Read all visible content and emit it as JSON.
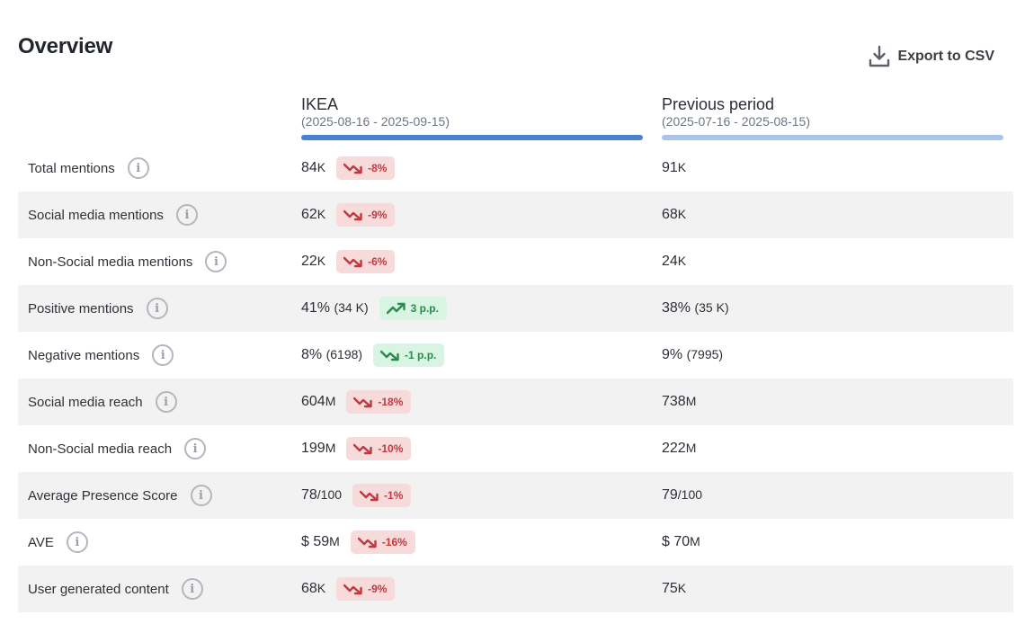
{
  "title": "Overview",
  "export_label": "Export to CSV",
  "columns": {
    "current": {
      "name": "IKEA",
      "range": "(2025-08-16 - 2025-09-15)"
    },
    "previous": {
      "name": "Previous period",
      "range": "(2025-07-16 - 2025-08-15)"
    }
  },
  "colors": {
    "current_bar": "#4a82d0",
    "previous_bar": "#a9c4e8",
    "negative_badge_bg": "#f7dada",
    "negative_badge_text": "#c0393f",
    "positive_badge_bg": "#d8f4e2",
    "positive_badge_text": "#2a8a4e"
  },
  "rows": [
    {
      "label": "Total mentions",
      "current": "84",
      "current_suffix": "K",
      "current_sub": "",
      "change": "-8%",
      "trend": "down",
      "tone": "negative",
      "previous": "91",
      "previous_suffix": "K",
      "previous_sub": ""
    },
    {
      "label": "Social media mentions",
      "current": "62",
      "current_suffix": "K",
      "current_sub": "",
      "change": "-9%",
      "trend": "down",
      "tone": "negative",
      "previous": "68",
      "previous_suffix": "K",
      "previous_sub": ""
    },
    {
      "label": "Non-Social media mentions",
      "current": "22",
      "current_suffix": "K",
      "current_sub": "",
      "change": "-6%",
      "trend": "down",
      "tone": "negative",
      "previous": "24",
      "previous_suffix": "K",
      "previous_sub": ""
    },
    {
      "label": "Positive mentions",
      "current": "41%",
      "current_suffix": "",
      "current_sub": "(34 K)",
      "change": "3 p.p.",
      "trend": "up",
      "tone": "positive",
      "previous": "38%",
      "previous_suffix": "",
      "previous_sub": "(35 K)"
    },
    {
      "label": "Negative mentions",
      "current": "8%",
      "current_suffix": "",
      "current_sub": "(6198)",
      "change": "-1 p.p.",
      "trend": "down",
      "tone": "positive",
      "previous": "9%",
      "previous_suffix": "",
      "previous_sub": "(7995)"
    },
    {
      "label": "Social media reach",
      "current": "604",
      "current_suffix": "M",
      "current_sub": "",
      "change": "-18%",
      "trend": "down",
      "tone": "negative",
      "previous": "738",
      "previous_suffix": "M",
      "previous_sub": ""
    },
    {
      "label": "Non-Social media reach",
      "current": "199",
      "current_suffix": "M",
      "current_sub": "",
      "change": "-10%",
      "trend": "down",
      "tone": "negative",
      "previous": "222",
      "previous_suffix": "M",
      "previous_sub": ""
    },
    {
      "label": "Average Presence Score",
      "current": "78",
      "current_suffix": "/100",
      "current_sub": "",
      "change": "-1%",
      "trend": "down",
      "tone": "negative",
      "previous": "79",
      "previous_suffix": "/100",
      "previous_sub": ""
    },
    {
      "label": "AVE",
      "current": "$ 59",
      "current_suffix": "M",
      "current_sub": "",
      "change": "-16%",
      "trend": "down",
      "tone": "negative",
      "previous": "$ 70",
      "previous_suffix": "M",
      "previous_sub": ""
    },
    {
      "label": "User generated content",
      "current": "68",
      "current_suffix": "K",
      "current_sub": "",
      "change": "-9%",
      "trend": "down",
      "tone": "negative",
      "previous": "75",
      "previous_suffix": "K",
      "previous_sub": ""
    }
  ]
}
